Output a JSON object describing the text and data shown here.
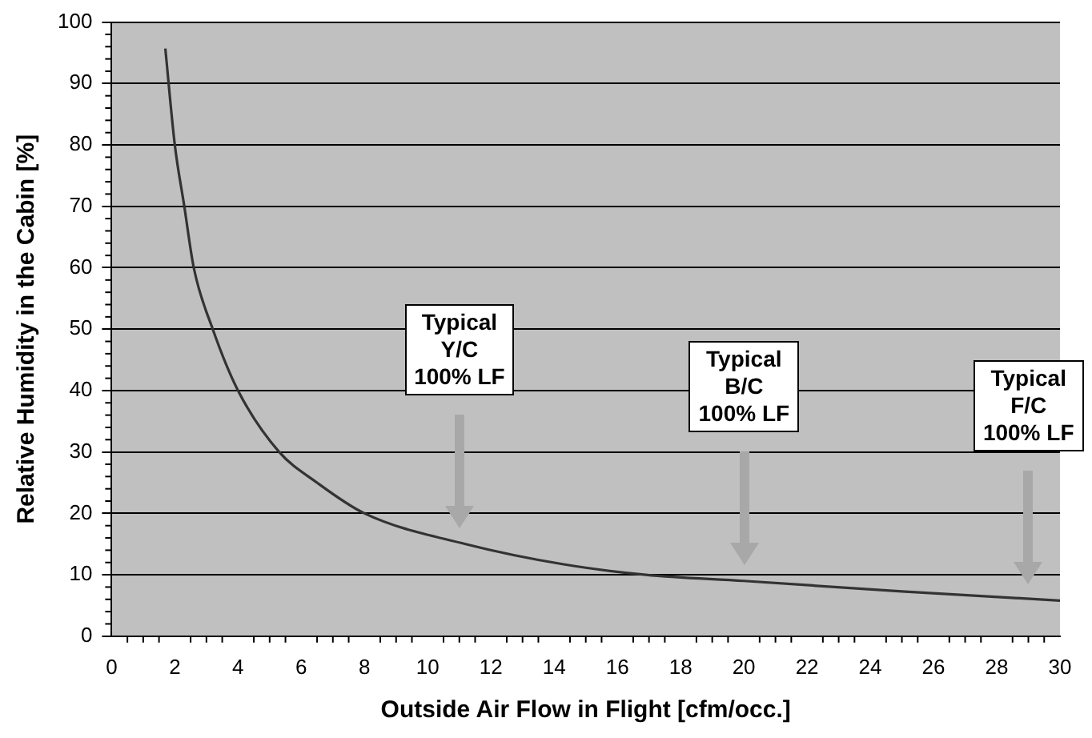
{
  "chart_data": {
    "type": "line",
    "xlabel": "Outside Air Flow in Flight [cfm/occ.]",
    "ylabel": "Relative Humidity in the Cabin [%]",
    "series": [
      {
        "color": "#333333",
        "x": [
          1.7,
          2.0,
          2.3,
          2.6,
          3.2,
          4.0,
          5.3,
          6.5,
          8.0,
          11.2,
          14.3,
          16.9,
          20,
          25,
          30
        ],
        "values": [
          95.7,
          80,
          70,
          60,
          50,
          40,
          30,
          25,
          20,
          15,
          11.7,
          10,
          9,
          7.3,
          5.8
        ]
      }
    ],
    "xlim": [
      0,
      30
    ],
    "xticks": [
      0,
      2,
      4,
      6,
      8,
      10,
      12,
      14,
      16,
      18,
      20,
      22,
      24,
      26,
      28,
      30
    ],
    "ylim": [
      0,
      100
    ],
    "yticks": [
      0,
      10,
      20,
      30,
      40,
      50,
      60,
      70,
      80,
      90,
      100
    ],
    "grid": "y",
    "legend": false,
    "marker": "none",
    "line_style": "solid",
    "annotations": [
      "Typical\nY/C\n100% LF",
      "Typical\nB/C\n100% LF",
      "Typical\nF/C\n100% LF"
    ]
  }
}
